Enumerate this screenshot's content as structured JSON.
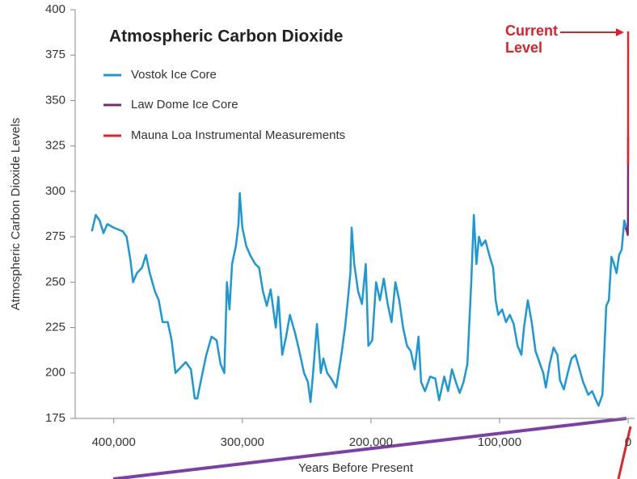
{
  "chart_data": {
    "type": "line",
    "title": "Atmospheric Carbon Dioxide",
    "xlabel": "Years Before Present",
    "ylabel": "Atmospheric Carbon Dioxide Levels",
    "annotation": "Current Level",
    "xlim": [
      430000,
      -5000
    ],
    "ylim": [
      175,
      400
    ],
    "xticks": [
      {
        "value": 400000,
        "label": "400,000"
      },
      {
        "value": 300000,
        "label": "300,000"
      },
      {
        "value": 200000,
        "label": "200,000"
      },
      {
        "value": 100000,
        "label": "100,000"
      },
      0
    ],
    "yticks": [
      175,
      200,
      225,
      250,
      275,
      300,
      325,
      350,
      375,
      400
    ],
    "legend": "upper left",
    "series": [
      {
        "name": "Vostok Ice Core",
        "color": "#1b98d5",
        "x": [
          417000,
          414000,
          411000,
          408000,
          405000,
          400000,
          393000,
          390000,
          387000,
          385000,
          382000,
          378000,
          375000,
          372000,
          368000,
          365000,
          362000,
          358000,
          355000,
          352000,
          348000,
          344000,
          340000,
          337000,
          335000,
          331000,
          328000,
          324000,
          320000,
          317000,
          314000,
          312000,
          310000,
          308000,
          305000,
          303000,
          302000,
          300000,
          297000,
          294000,
          290000,
          287000,
          284000,
          281000,
          278000,
          274000,
          272000,
          269000,
          266000,
          263000,
          259000,
          256000,
          252000,
          249000,
          247000,
          245000,
          242000,
          239000,
          237000,
          234000,
          231000,
          227000,
          223000,
          220000,
          218000,
          216000,
          215000,
          213000,
          210000,
          207000,
          204000,
          202000,
          199000,
          196000,
          193000,
          190000,
          187000,
          184000,
          181000,
          178000,
          175000,
          172000,
          169000,
          166000,
          163000,
          161000,
          158000,
          154000,
          150000,
          147000,
          143000,
          140000,
          137000,
          134000,
          131000,
          128000,
          125000,
          122000,
          120000,
          118000,
          116000,
          114000,
          111000,
          108000,
          105000,
          103000,
          101000,
          98000,
          95000,
          92000,
          89000,
          86000,
          83000,
          81000,
          78000,
          75000,
          72000,
          69000,
          66000,
          64000,
          61000,
          58000,
          55000,
          53000,
          50000,
          47000,
          44000,
          41000,
          37000,
          35000,
          31000,
          28000,
          25000,
          23000,
          20000,
          17000,
          15000,
          13000,
          11000,
          9000,
          7000,
          5000,
          3000,
          1500
        ],
        "values": [
          278,
          287,
          284,
          277,
          282,
          280,
          278,
          275,
          262,
          250,
          255,
          258,
          265,
          255,
          245,
          240,
          228,
          228,
          218,
          200,
          203,
          206,
          202,
          186,
          186,
          200,
          210,
          220,
          218,
          205,
          200,
          250,
          235,
          260,
          270,
          282,
          299,
          280,
          270,
          265,
          260,
          258,
          245,
          237,
          246,
          225,
          242,
          210,
          220,
          232,
          222,
          213,
          200,
          195,
          184,
          200,
          227,
          200,
          208,
          200,
          197,
          192,
          210,
          226,
          240,
          255,
          280,
          260,
          245,
          238,
          260,
          215,
          218,
          250,
          240,
          252,
          238,
          228,
          250,
          240,
          225,
          215,
          212,
          202,
          220,
          195,
          190,
          198,
          197,
          185,
          198,
          190,
          202,
          195,
          189,
          195,
          205,
          250,
          287,
          260,
          275,
          270,
          273,
          265,
          258,
          240,
          232,
          235,
          228,
          232,
          227,
          215,
          210,
          225,
          240,
          228,
          212,
          206,
          200,
          192,
          205,
          214,
          210,
          196,
          191,
          200,
          208,
          210,
          200,
          195,
          188,
          190,
          185,
          182,
          188,
          237,
          240,
          264,
          260,
          255,
          265,
          268,
          284,
          280
        ]
      },
      {
        "name": "Law Dome Ice Core",
        "color": "#7a2a6e",
        "x": [
          2000,
          1000,
          300,
          150,
          80,
          40,
          10
        ],
        "values": [
          280,
          278,
          276,
          285,
          300,
          320,
          330
        ]
      },
      {
        "name": "Mauna Loa Instrumental Measurements",
        "color": "#e0242b",
        "x": [
          50,
          25,
          0
        ],
        "values": [
          315,
          340,
          388
        ]
      }
    ]
  }
}
